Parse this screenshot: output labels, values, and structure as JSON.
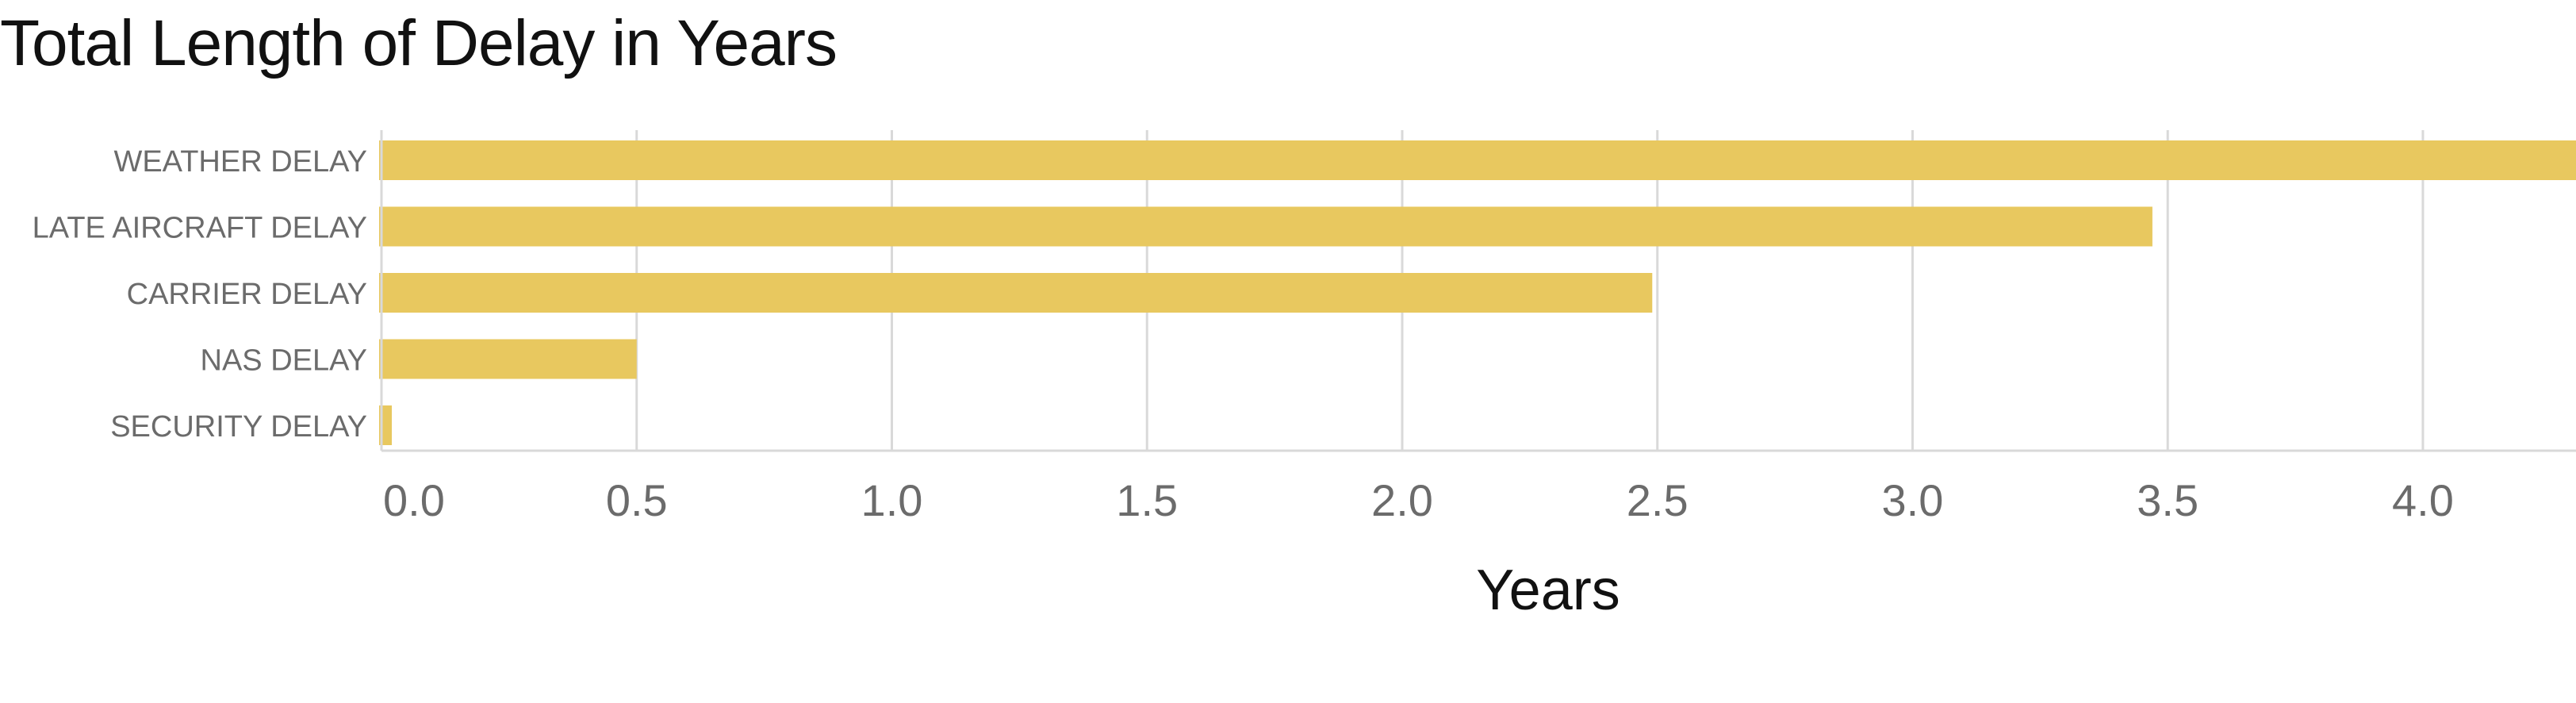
{
  "chart_data": {
    "type": "bar",
    "orientation": "horizontal",
    "title": "Total Length of Delay in Years",
    "xlabel": "Years",
    "ylabel": "",
    "categories": [
      "WEATHER DELAY",
      "LATE AIRCRAFT DELAY",
      "CARRIER DELAY",
      "NAS DELAY",
      "SECURITY DELAY"
    ],
    "values": [
      4.3,
      3.47,
      2.49,
      0.5,
      0.02
    ],
    "xlim": [
      0,
      4.3
    ],
    "xticks": [
      "0.0",
      "0.5",
      "1.0",
      "1.5",
      "2.0",
      "2.5",
      "3.0",
      "3.5",
      "4.0"
    ],
    "grid": "vertical",
    "legend": "none",
    "colors": {
      "bar": "#e8c85f",
      "grid": "#d9d9d9",
      "tick_text": "#6b6b6b",
      "title_text": "#111111"
    }
  }
}
